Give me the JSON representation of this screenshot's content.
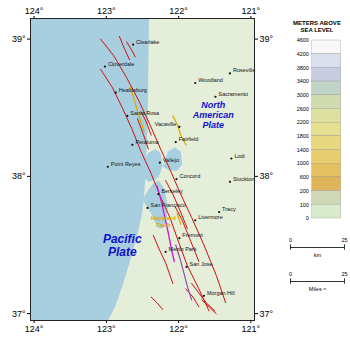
{
  "chart_data": {
    "type": "map",
    "xlim": [
      124.05,
      120.95
    ],
    "ylim": [
      36.95,
      39.15
    ],
    "xticks": [
      {
        "value": 124,
        "label": "124°"
      },
      {
        "value": 123,
        "label": "123°"
      },
      {
        "value": 122,
        "label": "122°"
      },
      {
        "value": 121,
        "label": "121°"
      }
    ],
    "yticks": [
      {
        "value": 37,
        "label": "37°"
      },
      {
        "value": 38,
        "label": "38°"
      },
      {
        "value": 39,
        "label": "39°"
      }
    ],
    "grid": false,
    "color": "#a8cfe0",
    "regions": [
      {
        "color": "#e4eed8",
        "x": [
          120.95,
          123.05,
          123.05,
          120.95
        ],
        "y": [
          36.95,
          36.95,
          39.15,
          39.15
        ]
      },
      {
        "color": "#a8cfe0",
        "x": [
          123.08,
          122.98,
          122.88,
          122.78,
          122.65,
          122.55,
          122.5,
          122.48,
          122.46,
          122.45,
          122.43,
          122.41,
          123.08
        ],
        "y": [
          36.95,
          36.95,
          37.05,
          37.2,
          37.42,
          37.62,
          37.75,
          37.85,
          38.0,
          38.15,
          38.35,
          39.15,
          39.15
        ]
      },
      {
        "color": "#a8cfe0",
        "x": [
          122.5,
          122.44,
          122.38,
          122.33,
          122.27,
          122.22,
          122.17,
          122.15,
          122.18,
          122.22,
          122.28,
          122.35,
          122.42,
          122.5
        ],
        "y": [
          37.83,
          37.78,
          37.73,
          37.67,
          37.62,
          37.62,
          37.68,
          37.78,
          37.87,
          37.93,
          37.97,
          37.95,
          37.9,
          37.83
        ]
      },
      {
        "color": "#a8cfe0",
        "x": [
          122.55,
          122.48,
          122.42,
          122.35,
          122.27,
          122.22,
          122.25,
          122.32,
          122.42,
          122.52,
          122.55
        ],
        "y": [
          38.05,
          37.99,
          37.96,
          37.97,
          38.0,
          38.08,
          38.17,
          38.2,
          38.17,
          38.1,
          38.05
        ]
      },
      {
        "color": "#a8cfe0",
        "x": [
          122.22,
          122.12,
          122.02,
          121.95,
          121.97,
          122.05,
          122.15,
          122.22
        ],
        "y": [
          38.07,
          38.04,
          38.04,
          38.09,
          38.18,
          38.21,
          38.18,
          38.07
        ]
      },
      {
        "color": "#a8cfe0",
        "x": [
          122.82,
          122.78,
          122.72,
          122.68,
          122.7,
          122.75,
          122.82
        ],
        "y": [
          39.02,
          38.97,
          38.93,
          38.88,
          38.85,
          38.9,
          39.02
        ]
      }
    ],
    "faults": [
      {
        "color": "#cc1111",
        "lines": [
          {
            "x": [
              123.08,
              122.9,
              122.72,
              122.55,
              122.4,
              122.25,
              122.12,
              121.98,
              121.82,
              121.65,
              121.48,
              121.35
            ],
            "y": [
              39.0,
              38.88,
              38.72,
              38.55,
              38.38,
              38.2,
              38.05,
              37.88,
              37.7,
              37.5,
              37.28,
              37.08
            ]
          },
          {
            "x": [
              123.08,
              122.92,
              122.78,
              122.65,
              122.52,
              122.38,
              122.25,
              122.12,
              122.0,
              121.88,
              121.72,
              121.58
            ],
            "y": [
              38.78,
              38.65,
              38.5,
              38.35,
              38.18,
              38.02,
              37.85,
              37.7,
              37.52,
              37.35,
              37.18,
              37.02
            ]
          },
          {
            "x": [
              122.82,
              122.75,
              122.68
            ],
            "y": [
              39.02,
              38.93,
              38.85
            ]
          },
          {
            "x": [
              122.72,
              122.65,
              122.6
            ],
            "y": [
              38.98,
              38.92,
              38.87
            ]
          },
          {
            "x": [
              122.57,
              122.52,
              122.47,
              122.42
            ],
            "y": [
              38.42,
              38.35,
              38.28,
              38.2
            ]
          },
          {
            "x": [
              122.52,
              122.45,
              122.38
            ],
            "y": [
              38.47,
              38.4,
              38.3
            ]
          },
          {
            "x": [
              122.18,
              122.08,
              121.98,
              121.88
            ],
            "y": [
              37.97,
              37.87,
              37.75,
              37.62
            ]
          },
          {
            "x": [
              122.05,
              121.95,
              121.85,
              121.72
            ],
            "y": [
              37.78,
              37.68,
              37.55,
              37.38
            ]
          },
          {
            "x": [
              121.82,
              121.72,
              121.62,
              121.5
            ],
            "y": [
              37.22,
              37.15,
              37.08,
              37.02
            ]
          },
          {
            "x": [
              121.9,
              121.8,
              121.72
            ],
            "y": [
              37.18,
              37.12,
              37.05
            ]
          },
          {
            "x": [
              122.35,
              122.27,
              122.18,
              122.08
            ],
            "y": [
              37.57,
              37.47,
              37.37,
              37.22
            ]
          },
          {
            "x": [
              121.68,
              121.58,
              121.48
            ],
            "y": [
              37.1,
              37.05,
              37.0
            ]
          },
          {
            "x": [
              122.38,
              122.3,
              122.22
            ],
            "y": [
              37.12,
              37.08,
              37.03
            ]
          }
        ]
      },
      {
        "color": "#ddaa00",
        "lines": [
          {
            "x": [
              122.67,
              122.61,
              122.55,
              122.48
            ],
            "y": [
              38.65,
              38.55,
              38.44,
              38.33
            ]
          },
          {
            "x": [
              122.08,
              122.02,
              121.97,
              121.9
            ],
            "y": [
              38.44,
              38.38,
              38.3,
              38.23
            ]
          },
          {
            "x": [
              122.02,
              121.97
            ],
            "y": [
              37.73,
              37.65
            ]
          }
        ]
      },
      {
        "color": "#cc22cc",
        "lines": [
          {
            "x": [
              122.3,
              122.24,
              122.19,
              122.14,
              122.1,
              122.06
            ],
            "y": [
              37.93,
              37.82,
              37.7,
              37.58,
              37.47,
              37.38
            ]
          }
        ]
      },
      {
        "color": "#8844aa",
        "lines": [
          {
            "x": [
              122.04,
              121.98,
              121.93,
              121.88,
              121.82
            ],
            "y": [
              37.5,
              37.4,
              37.3,
              37.2,
              37.1
            ]
          }
        ]
      }
    ],
    "cities": [
      {
        "label": "Clearlake",
        "x": 122.63,
        "y": 38.96
      },
      {
        "label": "Cloverdale",
        "x": 123.02,
        "y": 38.8
      },
      {
        "label": "Healdsburg",
        "x": 122.87,
        "y": 38.61
      },
      {
        "label": "Santa Rosa",
        "x": 122.71,
        "y": 38.44
      },
      {
        "label": "Petaluma",
        "x": 122.64,
        "y": 38.23
      },
      {
        "label": "Point Reyes",
        "x": 122.98,
        "y": 38.07
      },
      {
        "label": "Vallejo",
        "x": 122.26,
        "y": 38.1
      },
      {
        "label": "Berkeley",
        "x": 122.28,
        "y": 37.87
      },
      {
        "label": "San Francisco",
        "x": 122.43,
        "y": 37.77
      },
      {
        "label": "Menlo Park",
        "x": 122.18,
        "y": 37.45
      },
      {
        "label": "San Jose",
        "x": 121.89,
        "y": 37.34
      },
      {
        "label": "Fremont",
        "x": 121.99,
        "y": 37.55
      },
      {
        "label": "Livermore",
        "x": 121.77,
        "y": 37.68
      },
      {
        "label": "Concord",
        "x": 122.03,
        "y": 37.98
      },
      {
        "label": "Fairfield",
        "x": 122.04,
        "y": 38.25
      },
      {
        "label": "Vacaville",
        "x": 121.99,
        "y": 38.36
      },
      {
        "label": "Woodland",
        "x": 121.77,
        "y": 38.68
      },
      {
        "label": "Sacramento",
        "x": 121.49,
        "y": 38.58
      },
      {
        "label": "Roseville",
        "x": 121.29,
        "y": 38.75
      },
      {
        "label": "Lodi",
        "x": 121.27,
        "y": 38.13
      },
      {
        "label": "Stockton",
        "x": 121.29,
        "y": 37.96
      },
      {
        "label": "Tracy",
        "x": 121.44,
        "y": 37.74
      },
      {
        "label": "Morgan Hill",
        "x": 121.65,
        "y": 37.13
      }
    ],
    "annotations": [
      {
        "text": "Pacific\nPlate",
        "x": 122.78,
        "y": 37.5,
        "color": "#1111cc"
      },
      {
        "text": "North\nAmerican\nPlate",
        "x": 121.52,
        "y": 38.45,
        "color": "#1111cc"
      },
      {
        "text": "Hayward\nFault",
        "x": 122.21,
        "y": 37.67,
        "color": "#ddaa00"
      }
    ],
    "elevation_legend": {
      "title": "METERS ABOVE\nSEA LEVEL",
      "levels": [
        4600,
        4200,
        3800,
        3400,
        3000,
        2600,
        2200,
        1800,
        1400,
        1000,
        600,
        200,
        100,
        0
      ],
      "colors": [
        "#f8f8f8",
        "#dce0ec",
        "#c8cce0",
        "#c0d4c8",
        "#d0dcb0",
        "#dce0a0",
        "#e4e090",
        "#e8d880",
        "#e8cc70",
        "#e4c060",
        "#e0b458",
        "#d0d8b8",
        "#d8eccc"
      ]
    },
    "scale_bars": [
      {
        "ticks": [
          0,
          25
        ],
        "label": "km"
      },
      {
        "ticks": [
          0,
          25
        ],
        "label": "Miles ≈"
      }
    ]
  }
}
